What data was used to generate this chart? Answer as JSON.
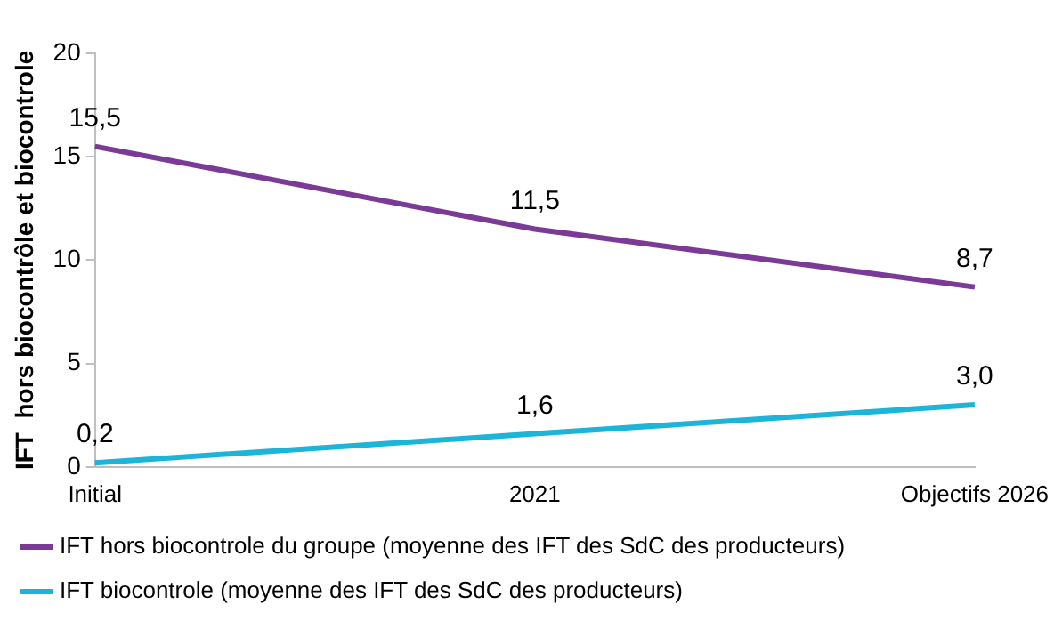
{
  "chart_data": {
    "type": "line",
    "ylabel": "IFT  hors biocontrôle et biocontrole",
    "categories": [
      "Initial",
      "2021",
      "Objectifs 2026"
    ],
    "series": [
      {
        "name": "IFT hors biocontrole du groupe (moyenne des IFT des SdC des producteurs)",
        "color": "#7b3a96",
        "values": [
          15.5,
          11.5,
          8.7
        ],
        "value_labels": [
          "15,5",
          "11,5",
          "8,7"
        ]
      },
      {
        "name": "IFT biocontrole (moyenne des IFT des SdC des producteurs)",
        "color": "#1db4d9",
        "values": [
          0.2,
          1.6,
          3.0
        ],
        "value_labels": [
          "0,2",
          "1,6",
          "3,0"
        ]
      }
    ],
    "ylim": [
      0,
      20
    ],
    "yticks": [
      0,
      5,
      10,
      15,
      20
    ],
    "grid": false,
    "legend": "bottom",
    "marker": "none",
    "line_style": "solid"
  }
}
